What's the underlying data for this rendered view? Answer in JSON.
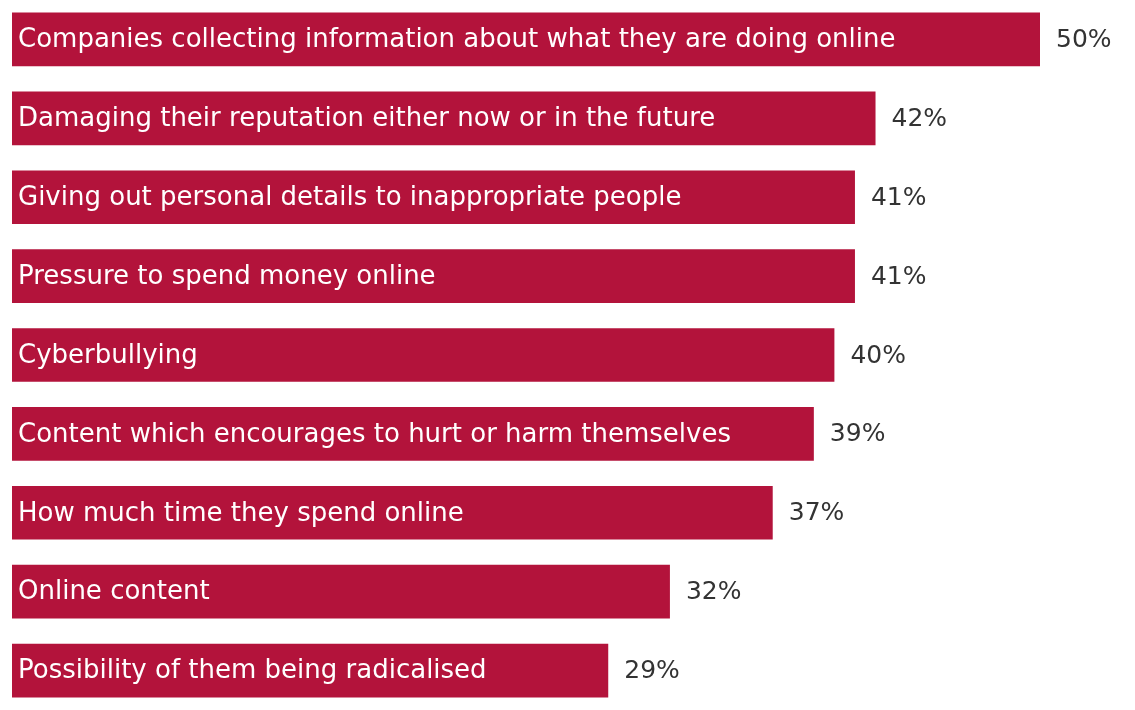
{
  "chart_data": {
    "type": "bar",
    "orientation": "horizontal",
    "legend": false,
    "categories": [
      "Companies collecting information about what they are doing online",
      "Damaging their reputation either now or in the future",
      "Giving out personal details to inappropriate people",
      "Pressure to spend money online",
      "Cyberbullying",
      "Content which encourages to hurt or harm themselves",
      "How much time they spend online",
      "Online content",
      "Possibility of them being radicalised"
    ],
    "values": [
      50,
      42,
      41,
      41,
      40,
      39,
      37,
      32,
      29
    ],
    "value_labels": [
      "50%",
      "42%",
      "41%",
      "41%",
      "40%",
      "39%",
      "37%",
      "32%",
      "29%"
    ],
    "color": "#b3133b"
  }
}
